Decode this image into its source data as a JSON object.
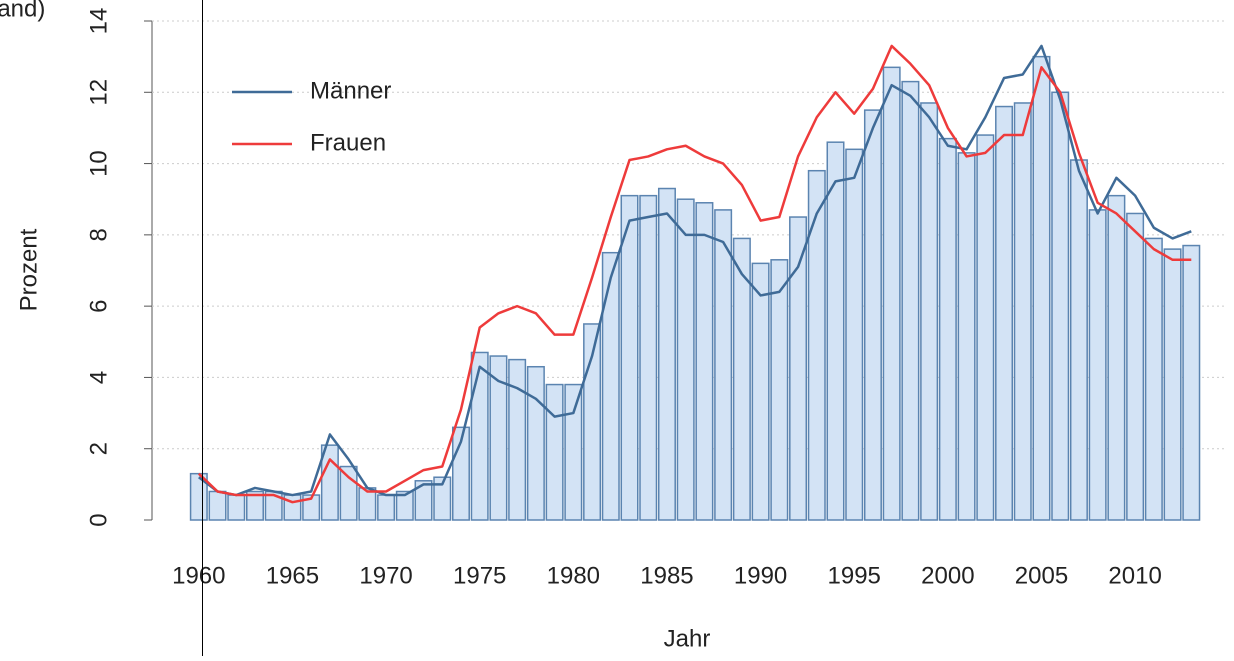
{
  "chart_data": {
    "type": "bar",
    "title": "land)",
    "x_label": "Jahr",
    "y_label": "Prozent",
    "x": [
      1960,
      1961,
      1962,
      1963,
      1964,
      1965,
      1966,
      1967,
      1968,
      1969,
      1970,
      1971,
      1972,
      1973,
      1974,
      1975,
      1976,
      1977,
      1978,
      1979,
      1980,
      1981,
      1982,
      1983,
      1984,
      1985,
      1986,
      1987,
      1988,
      1989,
      1990,
      1991,
      1992,
      1993,
      1994,
      1995,
      1996,
      1997,
      1998,
      1999,
      2000,
      2001,
      2002,
      2003,
      2004,
      2005,
      2006,
      2007,
      2008,
      2009,
      2010,
      2011,
      2012,
      2013
    ],
    "values": [
      1.3,
      0.8,
      0.7,
      0.8,
      0.8,
      0.7,
      0.7,
      2.1,
      1.5,
      0.9,
      0.7,
      0.8,
      1.1,
      1.2,
      2.6,
      4.7,
      4.6,
      4.5,
      4.3,
      3.8,
      3.8,
      5.5,
      7.5,
      9.1,
      9.1,
      9.3,
      9.0,
      8.9,
      8.7,
      7.9,
      7.2,
      7.3,
      8.5,
      9.8,
      10.6,
      10.4,
      11.5,
      12.7,
      12.3,
      11.7,
      10.7,
      10.3,
      10.8,
      11.6,
      11.7,
      13.0,
      12.0,
      10.1,
      8.7,
      9.1,
      8.6,
      7.9,
      7.6,
      7.7
    ],
    "color": "#d3e3f5",
    "edge_color": "#5b84b0",
    "series": [
      {
        "name": "Männer",
        "color": "#3f6b97",
        "values": [
          1.2,
          0.8,
          0.7,
          0.9,
          0.8,
          0.7,
          0.8,
          2.4,
          1.7,
          0.9,
          0.7,
          0.7,
          1.0,
          1.0,
          2.2,
          4.3,
          3.9,
          3.7,
          3.4,
          2.9,
          3.0,
          4.6,
          6.8,
          8.4,
          8.5,
          8.6,
          8.0,
          8.0,
          7.8,
          6.9,
          6.3,
          6.4,
          7.1,
          8.6,
          9.5,
          9.6,
          11.0,
          12.2,
          11.9,
          11.3,
          10.5,
          10.4,
          11.3,
          12.4,
          12.5,
          13.3,
          11.8,
          9.8,
          8.6,
          9.6,
          9.1,
          8.2,
          7.9,
          8.1
        ]
      },
      {
        "name": "Frauen",
        "color": "#ee3b3b",
        "values": [
          1.3,
          0.8,
          0.7,
          0.7,
          0.7,
          0.5,
          0.6,
          1.7,
          1.2,
          0.8,
          0.8,
          1.1,
          1.4,
          1.5,
          3.1,
          5.4,
          5.8,
          6.0,
          5.8,
          5.2,
          5.2,
          6.8,
          8.5,
          10.1,
          10.2,
          10.4,
          10.5,
          10.2,
          10.0,
          9.4,
          8.4,
          8.5,
          10.2,
          11.3,
          12.0,
          11.4,
          12.1,
          13.3,
          12.8,
          12.2,
          11.0,
          10.2,
          10.3,
          10.8,
          10.8,
          12.7,
          12.0,
          10.3,
          8.9,
          8.6,
          8.1,
          7.6,
          7.3,
          7.3
        ]
      }
    ],
    "xlim": [
      1957.5,
      2014.8
    ],
    "xticks": [
      1960,
      1965,
      1970,
      1975,
      1980,
      1985,
      1990,
      1995,
      2000,
      2005,
      2010
    ],
    "ylim": [
      0,
      14
    ],
    "yticks": [
      0,
      2,
      4,
      6,
      8,
      10,
      12,
      14
    ],
    "grid": true,
    "legend": "top-left"
  }
}
